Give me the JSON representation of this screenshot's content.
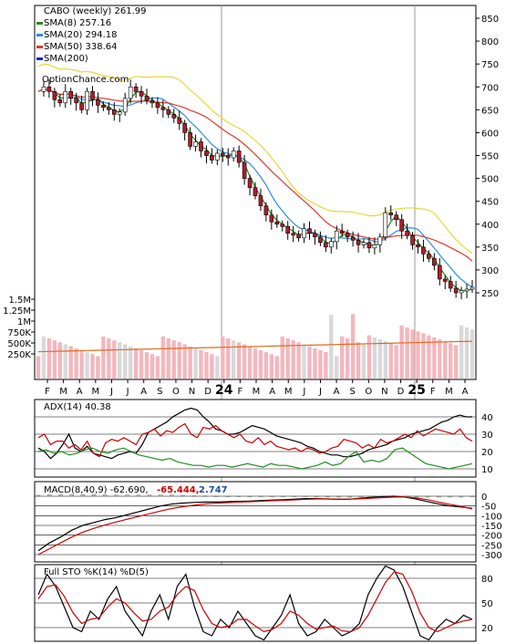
{
  "chart_data": [
    {
      "type": "candlestick",
      "title": "CABO (weekly) 261.99",
      "watermark": "OptionChance.com",
      "legend": [
        {
          "label": "SMA(8) 257.16",
          "color": "#228b22"
        },
        {
          "label": "SMA(20) 294.18",
          "color": "#2a8fd8"
        },
        {
          "label": "SMA(50) 338.64",
          "color": "#e2382a"
        },
        {
          "label": "SMA(200)",
          "color": "#1c1cc8"
        }
      ],
      "price_axis": {
        "ticks": [
          "850",
          "800",
          "750",
          "700",
          "650",
          "600",
          "550",
          "500",
          "450",
          "400",
          "350",
          "300",
          "250"
        ]
      },
      "volume_axis": {
        "ticks": [
          "1.5M",
          "1.25M",
          "1M",
          "750K",
          "500K",
          "250K"
        ]
      },
      "x_labels": [
        "F",
        "M",
        "A",
        "M",
        "J",
        "J",
        "A",
        "S",
        "O",
        "N",
        "D",
        "24",
        "F",
        "M",
        "A",
        "M",
        "J",
        "J",
        "A",
        "S",
        "O",
        "N",
        "D",
        "25",
        "F",
        "M",
        "A"
      ],
      "close_series": [
        690,
        700,
        690,
        672,
        665,
        690,
        675,
        665,
        650,
        690,
        672,
        660,
        655,
        650,
        640,
        645,
        675,
        700,
        690,
        680,
        670,
        665,
        655,
        650,
        640,
        632,
        620,
        600,
        570,
        580,
        560,
        550,
        540,
        555,
        550,
        545,
        560,
        535,
        500,
        480,
        462,
        440,
        420,
        405,
        400,
        395,
        380,
        378,
        370,
        390,
        380,
        372,
        360,
        350,
        362,
        385,
        380,
        372,
        365,
        355,
        360,
        348,
        355,
        372,
        425,
        420,
        410,
        385,
        375,
        355,
        350,
        335,
        325,
        310,
        280,
        275,
        260,
        250,
        255,
        258,
        262
      ]
    },
    {
      "type": "line",
      "title": "ADX(14) 40.38",
      "ticks": [
        "40",
        "30",
        "20",
        "10"
      ],
      "series": [
        {
          "color": "#000000",
          "values": [
            22,
            20,
            16,
            19,
            24,
            30,
            22,
            20,
            23,
            19,
            18,
            17,
            16,
            18,
            19,
            20,
            19,
            24,
            31,
            33,
            35,
            37,
            40,
            42,
            44,
            45,
            44,
            40,
            37,
            33,
            32,
            30,
            30,
            31,
            33,
            35,
            34,
            33,
            31,
            29,
            28,
            27,
            26,
            25,
            23,
            22,
            20,
            19,
            18,
            18,
            17,
            17,
            18,
            19,
            21,
            22,
            23,
            24,
            26,
            27,
            28,
            30,
            31,
            32,
            33,
            35,
            37,
            38,
            40,
            41,
            40,
            40
          ]
        },
        {
          "color": "#cc0000",
          "values": [
            28,
            30,
            24,
            26,
            26,
            22,
            24,
            21,
            26,
            19,
            17,
            25,
            27,
            26,
            28,
            26,
            24,
            30,
            31,
            33,
            29,
            32,
            31,
            34,
            36,
            30,
            28,
            34,
            33,
            35,
            32,
            30,
            28,
            30,
            26,
            25,
            28,
            24,
            26,
            23,
            22,
            21,
            22,
            20,
            22,
            21,
            19,
            20,
            22,
            23,
            27,
            26,
            25,
            22,
            24,
            22,
            27,
            25,
            26,
            28,
            30,
            28,
            32,
            29,
            31,
            33,
            32,
            31,
            30,
            33,
            28,
            26
          ]
        },
        {
          "color": "#228b22",
          "values": [
            20,
            21,
            19,
            20,
            18,
            19,
            21,
            22,
            20,
            19,
            21,
            22,
            20,
            18,
            17,
            16,
            15,
            16,
            14,
            13,
            12,
            12,
            11,
            12,
            12,
            11,
            12,
            13,
            12,
            11,
            13,
            12,
            12,
            11,
            10,
            11,
            12,
            14,
            12,
            13,
            17,
            20,
            14,
            15,
            14,
            16,
            21,
            22,
            19,
            16,
            13,
            12,
            11,
            10,
            11,
            12,
            13
          ]
        }
      ]
    },
    {
      "type": "line",
      "title": "MACD(8,40,9) -62.690,",
      "values_text": [
        {
          "text": "-65.444,",
          "color": "#cc0000"
        },
        {
          "text": "2.747",
          "color": "#1c4fa8"
        }
      ],
      "ticks": [
        "0",
        "-50",
        "-100",
        "-150",
        "-200",
        "-250",
        "-300"
      ],
      "series": [
        {
          "color": "#000000",
          "values": [
            -280,
            -240,
            -210,
            -175,
            -150,
            -135,
            -120,
            -110,
            -95,
            -80,
            -65,
            -50,
            -40,
            -35,
            -32,
            -30,
            -30,
            -28,
            -26,
            -25,
            -22,
            -20,
            -18,
            -15,
            -12,
            -12,
            -14,
            -16,
            -15,
            -10,
            -5,
            -2,
            0,
            -5,
            -15,
            -28,
            -40,
            -50,
            -55,
            -62
          ]
        },
        {
          "color": "#cc0000",
          "values": [
            -300,
            -270,
            -240,
            -210,
            -185,
            -165,
            -148,
            -132,
            -118,
            -104,
            -90,
            -76,
            -63,
            -54,
            -46,
            -40,
            -36,
            -33,
            -30,
            -28,
            -26,
            -23,
            -21,
            -19,
            -16,
            -14,
            -14,
            -15,
            -15,
            -13,
            -10,
            -7,
            -4,
            -4,
            -9,
            -18,
            -30,
            -42,
            -52,
            -65
          ]
        }
      ]
    },
    {
      "type": "line",
      "title": "Full STO %K(14) %D(5)",
      "ticks": [
        "80",
        "50",
        "20"
      ],
      "series": [
        {
          "color": "#000000",
          "values": [
            60,
            85,
            70,
            45,
            20,
            15,
            40,
            30,
            55,
            70,
            40,
            25,
            10,
            40,
            60,
            30,
            70,
            85,
            45,
            15,
            10,
            30,
            20,
            40,
            25,
            10,
            5,
            20,
            35,
            60,
            25,
            10,
            15,
            30,
            20,
            10,
            15,
            25,
            60,
            80,
            95,
            90,
            70,
            40,
            10,
            5,
            20,
            30,
            25,
            35,
            30
          ]
        },
        {
          "color": "#cc0000",
          "values": [
            55,
            70,
            72,
            58,
            38,
            25,
            30,
            32,
            45,
            55,
            50,
            38,
            28,
            30,
            40,
            45,
            60,
            70,
            65,
            42,
            25,
            20,
            22,
            30,
            30,
            22,
            15,
            18,
            25,
            40,
            35,
            25,
            18,
            20,
            22,
            16,
            15,
            20,
            35,
            55,
            75,
            88,
            85,
            65,
            38,
            20,
            15,
            20,
            25,
            28,
            30
          ]
        }
      ]
    }
  ]
}
